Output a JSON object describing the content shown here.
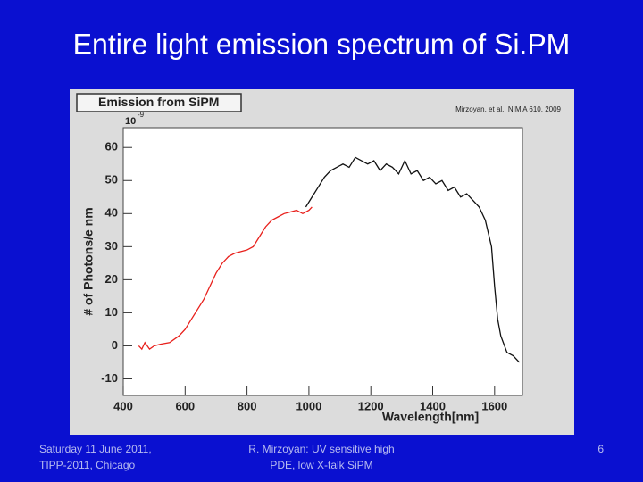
{
  "slide": {
    "title": "Entire light emission spectrum of Si.PM",
    "footer_left": [
      "Saturday 11 June 2011,",
      "TIPP-2011, Chicago"
    ],
    "footer_center": [
      "R. Mirzoyan: UV sensitive high",
      "PDE, low X-talk SiPM"
    ],
    "page_number": "6"
  },
  "chart_data": {
    "type": "line",
    "title": "Emission from SiPM",
    "annotation": "Mirzoyan, et al., NIM A 610, 2009",
    "x_label": "Wavelength[nm]",
    "y_label": "# of Photons/e nm",
    "y_exponent": {
      "base": "10",
      "power": "-9"
    },
    "xlim": [
      400,
      1690
    ],
    "ylim": [
      -15,
      66
    ],
    "xticks": [
      400,
      600,
      800,
      1000,
      1200,
      1400,
      1600
    ],
    "yticks": [
      -10,
      0,
      10,
      20,
      30,
      40,
      50,
      60
    ],
    "series": [
      {
        "color": "#e8201c",
        "x": [
          450,
          460,
          470,
          485,
          500,
          520,
          550,
          580,
          600,
          620,
          640,
          660,
          680,
          700,
          720,
          740,
          760,
          780,
          800,
          820,
          840,
          860,
          880,
          900,
          920,
          940,
          960,
          980,
          1000,
          1010
        ],
        "values": [
          0,
          -1,
          1,
          -1,
          0,
          0.5,
          1,
          3,
          5,
          8,
          11,
          14,
          18,
          22,
          25,
          27,
          28,
          28.5,
          29,
          30,
          33,
          36,
          38,
          39,
          40,
          40.5,
          41,
          40,
          41,
          42
        ]
      },
      {
        "color": "#111111",
        "x": [
          990,
          1010,
          1030,
          1050,
          1070,
          1090,
          1110,
          1130,
          1150,
          1170,
          1190,
          1210,
          1230,
          1250,
          1270,
          1290,
          1310,
          1330,
          1350,
          1370,
          1390,
          1410,
          1430,
          1450,
          1470,
          1490,
          1510,
          1530,
          1550,
          1570,
          1590,
          1600,
          1610,
          1620,
          1640,
          1660,
          1680
        ],
        "values": [
          42,
          45,
          48,
          51,
          53,
          54,
          55,
          54,
          57,
          56,
          55,
          56,
          53,
          55,
          54,
          52,
          56,
          52,
          53,
          50,
          51,
          49,
          50,
          47,
          48,
          45,
          46,
          44,
          42,
          38,
          30,
          18,
          8,
          3,
          -2,
          -3,
          -5
        ]
      }
    ]
  }
}
